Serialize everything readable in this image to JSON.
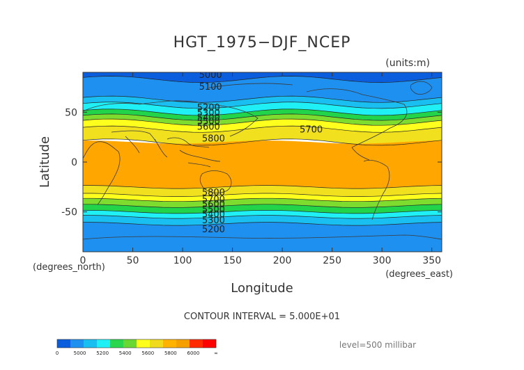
{
  "chart_data": {
    "type": "heatmap",
    "title": "HGT_1975−DJF_NCEP",
    "units": "(units:m)",
    "xlabel": "Longitude",
    "ylabel": "Latitude",
    "x_unit_label": "(degrees_east)",
    "y_unit_label": "(degrees_north)",
    "xlim": [
      0,
      360
    ],
    "ylim": [
      -90,
      90
    ],
    "x_ticks": [
      0,
      50,
      100,
      150,
      200,
      250,
      300,
      350
    ],
    "y_ticks": [
      -50,
      0,
      50
    ],
    "contour_interval_text": "CONTOUR INTERVAL = 5.000E+01",
    "level_text": "level=500 millibar",
    "bands": [
      {
        "lat_top": 90,
        "lat_bot": 83,
        "value": 5000
      },
      {
        "lat_top": 83,
        "lat_bot": 63,
        "value": 5100
      },
      {
        "lat_top": 63,
        "lat_bot": 57,
        "value": 5250
      },
      {
        "lat_top": 57,
        "lat_bot": 50,
        "value": 5350
      },
      {
        "lat_top": 50,
        "lat_bot": 45,
        "value": 5450
      },
      {
        "lat_top": 45,
        "lat_bot": 40,
        "value": 5550
      },
      {
        "lat_top": 40,
        "lat_bot": 33,
        "value": 5650
      },
      {
        "lat_top": 33,
        "lat_bot": 20,
        "value": 5750
      },
      {
        "lat_top": 20,
        "lat_bot": -25,
        "value": 5850
      },
      {
        "lat_top": -25,
        "lat_bot": -33,
        "value": 5750
      },
      {
        "lat_top": -33,
        "lat_bot": -38,
        "value": 5650
      },
      {
        "lat_top": -38,
        "lat_bot": -44,
        "value": 5550
      },
      {
        "lat_top": -44,
        "lat_bot": -50,
        "value": 5450
      },
      {
        "lat_top": -50,
        "lat_bot": -55,
        "value": 5350
      },
      {
        "lat_top": -55,
        "lat_bot": -62,
        "value": 5250
      },
      {
        "lat_top": -62,
        "lat_bot": -90,
        "value": 5100
      }
    ],
    "contour_labels": [
      {
        "text": "5000",
        "lon": 128,
        "lat": 88
      },
      {
        "text": "5100",
        "lon": 128,
        "lat": 76
      },
      {
        "text": "5200",
        "lon": 126,
        "lat": 55
      },
      {
        "text": "5300",
        "lon": 126,
        "lat": 50
      },
      {
        "text": "5400",
        "lon": 126,
        "lat": 45
      },
      {
        "text": "5500",
        "lon": 126,
        "lat": 41
      },
      {
        "text": "5600",
        "lon": 126,
        "lat": 36
      },
      {
        "text": "5700",
        "lon": 229,
        "lat": 33
      },
      {
        "text": "5800",
        "lon": 131,
        "lat": 24
      },
      {
        "text": "5800",
        "lon": 131,
        "lat": -30
      },
      {
        "text": "5700",
        "lon": 131,
        "lat": -37
      },
      {
        "text": "5600",
        "lon": 131,
        "lat": -42
      },
      {
        "text": "5500",
        "lon": 131,
        "lat": -47
      },
      {
        "text": "5400",
        "lon": 131,
        "lat": -52
      },
      {
        "text": "5300",
        "lon": 131,
        "lat": -58
      },
      {
        "text": "5200",
        "lon": 131,
        "lat": -67
      }
    ],
    "colorbar": {
      "ticks": [
        "0",
        "5000",
        "5200",
        "5400",
        "5600",
        "5800",
        "6000",
        "∞"
      ],
      "colors": [
        "#0a5ddc",
        "#1e90f0",
        "#19bff0",
        "#1ef0f5",
        "#29d64d",
        "#6ad832",
        "#ffff1e",
        "#f0da1e",
        "#ffb300",
        "#f5a000",
        "#ff2a00",
        "#ff0000"
      ]
    },
    "value_colors": [
      {
        "max": 5050,
        "color": "#0a5ddc"
      },
      {
        "max": 5200,
        "color": "#1e90f0"
      },
      {
        "max": 5300,
        "color": "#19bff0"
      },
      {
        "max": 5400,
        "color": "#1ef0f5"
      },
      {
        "max": 5500,
        "color": "#22d44a"
      },
      {
        "max": 5600,
        "color": "#7edc2e"
      },
      {
        "max": 5700,
        "color": "#ffff1e"
      },
      {
        "max": 5800,
        "color": "#f0e01e"
      },
      {
        "max": 99999,
        "color": "#ffa600"
      }
    ]
  }
}
